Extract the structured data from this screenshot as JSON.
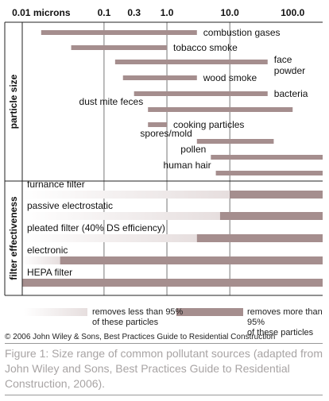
{
  "chart_data": {
    "type": "bar",
    "scale": "log",
    "xlim": [
      0.005,
      300
    ],
    "x_tick_labels": [
      {
        "value": 0.01,
        "label": "0.01 microns"
      },
      {
        "value": 0.1,
        "label": "0.1"
      },
      {
        "value": 0.3,
        "label": "0.3"
      },
      {
        "value": 1.0,
        "label": "1.0"
      },
      {
        "value": 10.0,
        "label": "10.0"
      },
      {
        "value": 100.0,
        "label": "100.0"
      }
    ],
    "gridlines_at": [
      0.1,
      1.0,
      10.0
    ],
    "groups": [
      {
        "label": "particle size"
      },
      {
        "label": "filter effectiveness"
      }
    ],
    "particle_sizes": [
      {
        "label": "combustion gases",
        "min": 0.01,
        "max": 3.0
      },
      {
        "label": "tobacco smoke",
        "min": 0.03,
        "max": 1.0
      },
      {
        "label": "face powder",
        "min": 0.15,
        "max": 40
      },
      {
        "label": "wood smoke",
        "min": 0.2,
        "max": 3.0
      },
      {
        "label": "bacteria",
        "min": 0.3,
        "max": 40
      },
      {
        "label": "dust mite feces",
        "min": 0.5,
        "max": 100
      },
      {
        "label": "cooking particles",
        "min": 0.5,
        "max": 1.0
      },
      {
        "label": "spores/mold",
        "min": 3.0,
        "max": 50
      },
      {
        "label": "pollen",
        "min": 5.0,
        "max": 300
      },
      {
        "label": "human hair",
        "min": 6.0,
        "max": 300
      }
    ],
    "filters": [
      {
        "label": "furnance filter",
        "threshold": 10.0
      },
      {
        "label": "passive electrostatic",
        "threshold": 7.0
      },
      {
        "label": "pleated filter (40% DS efficiency)",
        "threshold": 3.0
      },
      {
        "label": "electronic",
        "threshold": 0.02
      },
      {
        "label": "HEPA filter",
        "threshold": 0.005
      }
    ],
    "legend": [
      {
        "key": "low",
        "label": "removes less than 95%\nof these particles"
      },
      {
        "key": "high",
        "label": "removes more than 95%\nof these particles"
      }
    ],
    "colors": {
      "bar": "#a58e8e",
      "gradient_start": "#ffffff",
      "gradient_end": "#e6dede",
      "grid": "#555555"
    }
  },
  "legend_labels": {
    "low_line1": "removes less than 95%",
    "low_line2": "of these particles",
    "high_line1": "removes more than 95%",
    "high_line2": "of these particles"
  },
  "copyright": "© 2006 John Wiley & Sons, Best Practices Guide to Residential Construction",
  "caption": "Figure 1: Size range of common pollutant sources (adapted from John Wiley and Sons, Best Practices Guide to Residential Construction, 2006)."
}
